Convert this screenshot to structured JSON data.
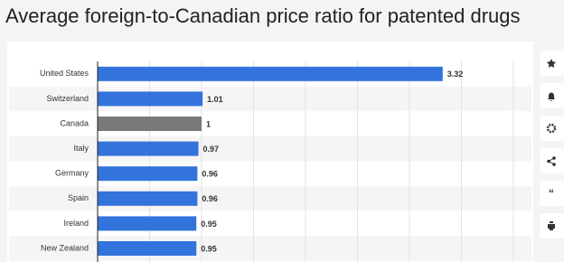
{
  "chart_data": {
    "type": "hbar",
    "title": "Average foreign-to-Canadian price ratio for patented drugs",
    "categories": [
      "United States",
      "Switzerland",
      "Canada",
      "Italy",
      "Germany",
      "Spain",
      "Ireland",
      "New Zealand"
    ],
    "values": [
      3.32,
      1.01,
      1,
      0.97,
      0.96,
      0.96,
      0.95,
      0.95
    ],
    "colors": [
      "#3373dc",
      "#3373dc",
      "#7a7a7a",
      "#3373dc",
      "#3373dc",
      "#3373dc",
      "#3373dc",
      "#3373dc"
    ],
    "xlim": [
      0,
      4
    ],
    "xticks": [
      0,
      0.5,
      1,
      1.5,
      2,
      2.5,
      3,
      3.5,
      4
    ],
    "grid": true
  }
}
